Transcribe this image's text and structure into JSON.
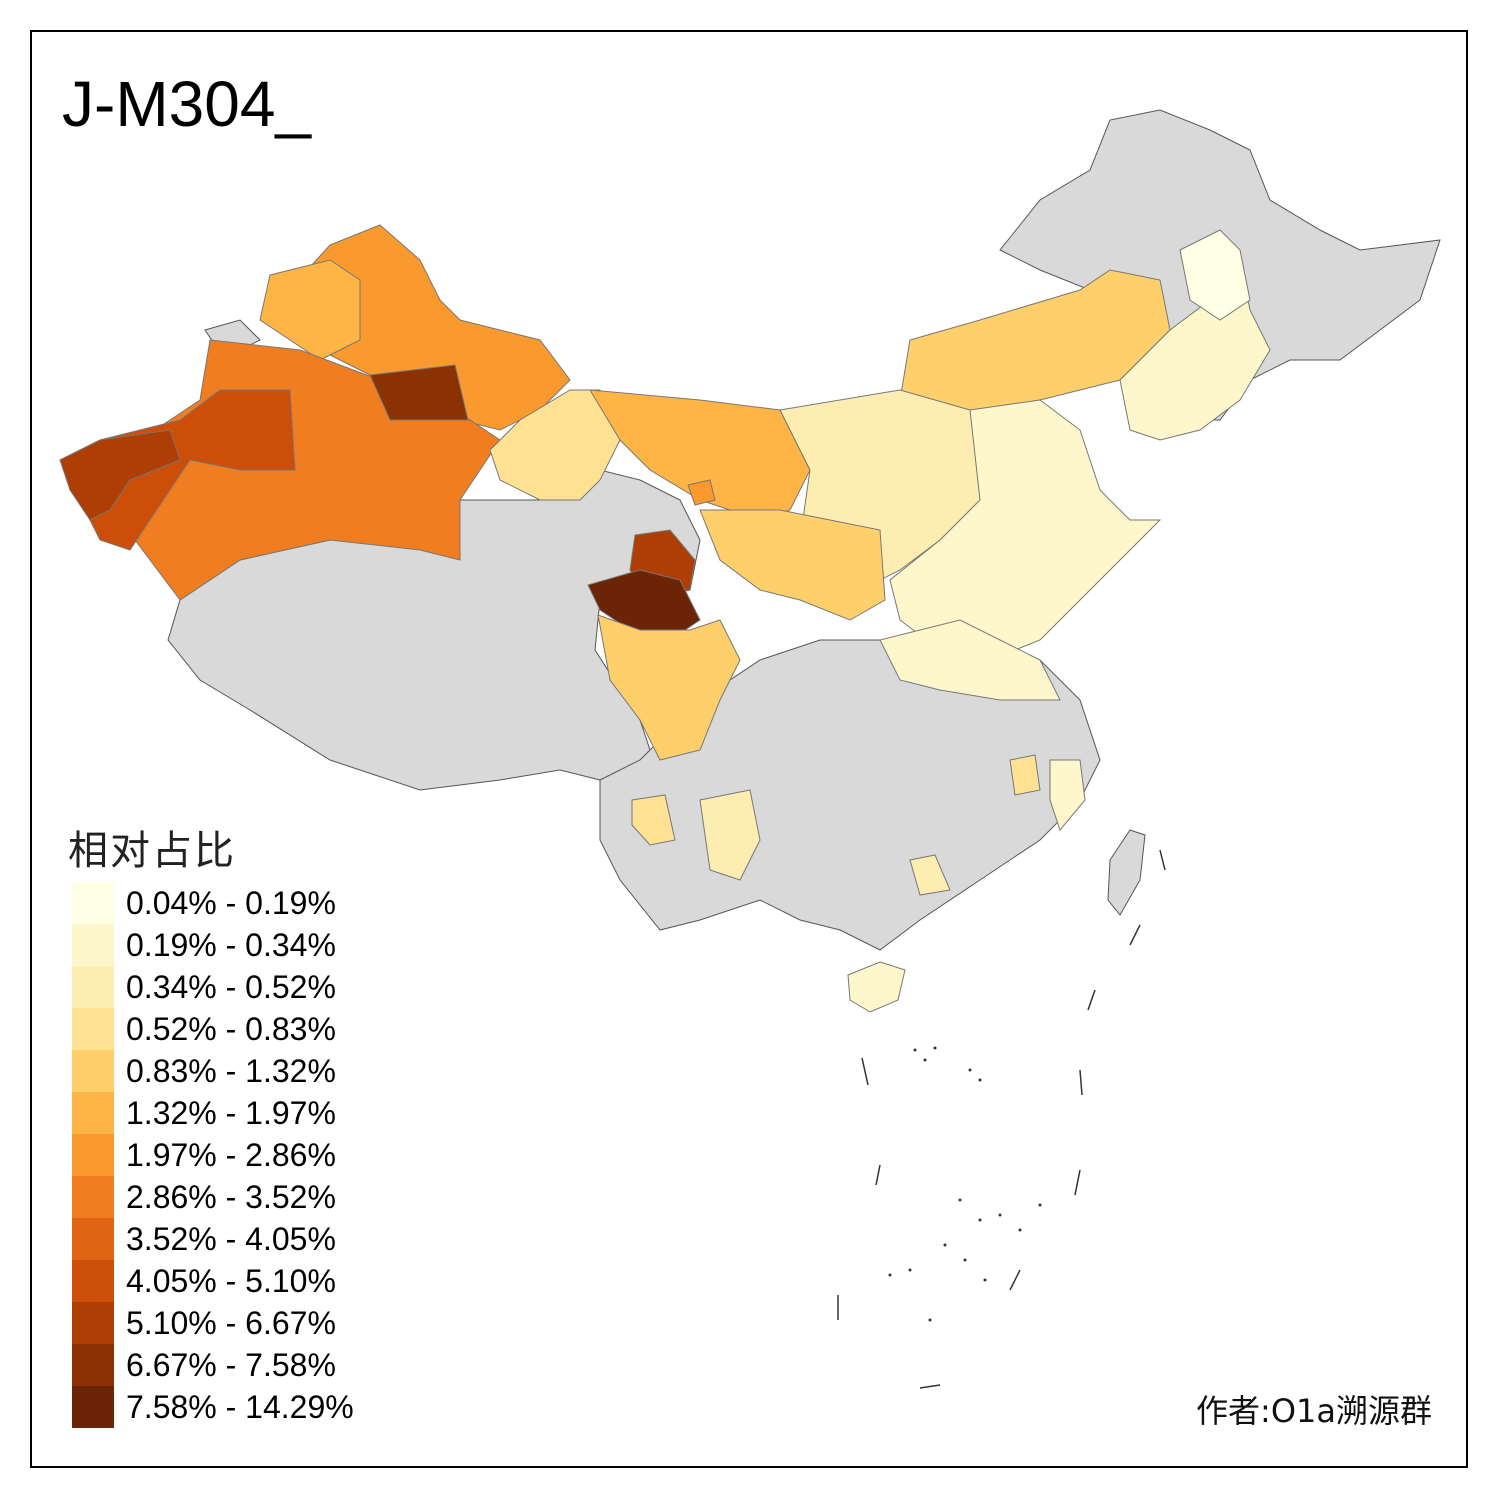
{
  "title": "J-M304_",
  "legend": {
    "title": "相对占比",
    "items": [
      {
        "label": "0.04% - 0.19%",
        "color": "#FFFFE5"
      },
      {
        "label": "0.19% - 0.34%",
        "color": "#FFF7CC"
      },
      {
        "label": "0.34% - 0.52%",
        "color": "#FEEDB0"
      },
      {
        "label": "0.52% - 0.83%",
        "color": "#FEE192"
      },
      {
        "label": "0.83% - 1.32%",
        "color": "#FECF6A"
      },
      {
        "label": "1.32% - 1.97%",
        "color": "#FEB545"
      },
      {
        "label": "1.97% - 2.86%",
        "color": "#FA992E"
      },
      {
        "label": "2.86% - 3.52%",
        "color": "#F07E20"
      },
      {
        "label": "3.52% - 4.05%",
        "color": "#E16414"
      },
      {
        "label": "4.05% - 5.10%",
        "color": "#CC4E08"
      },
      {
        "label": "5.10% - 6.67%",
        "color": "#AE3E04"
      },
      {
        "label": "6.67% - 7.58%",
        "color": "#8C3104"
      },
      {
        "label": "7.58% - 14.29%",
        "color": "#6B2506"
      }
    ]
  },
  "author": "作者:O1a溯源群",
  "colors": {
    "no_data": "#D9D9D9",
    "border": "#555555",
    "frame": "#000000"
  }
}
